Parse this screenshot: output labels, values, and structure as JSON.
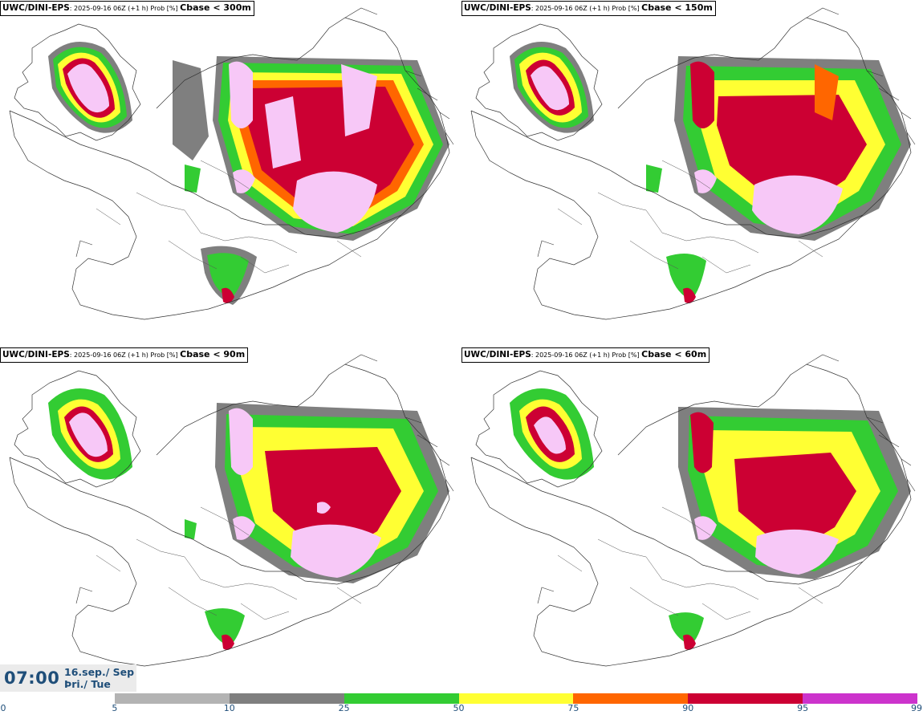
{
  "panels": [
    {
      "model": "UWC/DINI-EPS",
      "info": ": 2025-09-16 06Z (+1 h) Prob [%] ",
      "cbase": "Cbase < 300m"
    },
    {
      "model": "UWC/DINI-EPS",
      "info": ": 2025-09-16 06Z (+1 h) Prob [%] ",
      "cbase": "Cbase < 150m"
    },
    {
      "model": "UWC/DINI-EPS",
      "info": ": 2025-09-16 06Z (+1 h) Prob [%] ",
      "cbase": "Cbase < 90m"
    },
    {
      "model": "UWC/DINI-EPS",
      "info": ": 2025-09-16 06Z (+1 h) Prob [%] ",
      "cbase": "Cbase < 60m"
    }
  ],
  "valid_time": {
    "time": "07:00",
    "date_line1": "16.sep./ Sep",
    "date_line2": "Þri./ Tue"
  },
  "colorbar": {
    "ticks": [
      "0",
      "5",
      "10",
      "25",
      "50",
      "75",
      "90",
      "95",
      "99"
    ],
    "colors": [
      "#ffffff",
      "#b3b3b3",
      "#7f7f7f",
      "#33cc33",
      "#ffff33",
      "#ff6600",
      "#cc0033",
      "#cc33cc",
      "#f7c8f7"
    ]
  }
}
